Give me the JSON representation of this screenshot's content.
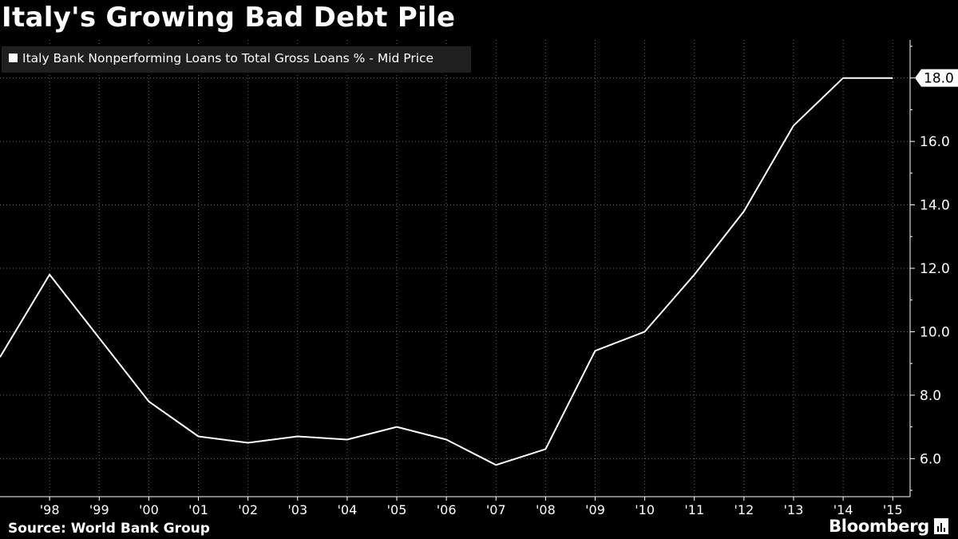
{
  "header": {
    "title": "Italy's Growing Bad Debt Pile"
  },
  "footer": {
    "source": "Source: World Bank Group",
    "brand": "Bloomberg"
  },
  "colors": {
    "background": "#000000",
    "line": "#ffffff",
    "grid": "#6a6a6a",
    "legend_bg": "#1f1f1f"
  },
  "chart_data": {
    "type": "line",
    "title": "Italy's Growing Bad Debt Pile",
    "xlabel": "",
    "ylabel": "",
    "series": [
      {
        "name": "Italy Bank Nonperforming Loans to Total Gross Loans % - Mid Price",
        "x": [
          1997,
          1998,
          1999,
          2000,
          2001,
          2002,
          2003,
          2004,
          2005,
          2006,
          2007,
          2008,
          2009,
          2010,
          2011,
          2012,
          2013,
          2014,
          2015
        ],
        "values": [
          9.2,
          11.8,
          9.8,
          7.8,
          6.7,
          6.5,
          6.7,
          6.6,
          7.0,
          6.6,
          5.8,
          6.3,
          9.4,
          10.0,
          11.8,
          13.8,
          16.5,
          18.0,
          18.0
        ]
      }
    ],
    "categories": [
      "'98",
      "'99",
      "'00",
      "'01",
      "'02",
      "'03",
      "'04",
      "'05",
      "'06",
      "'07",
      "'08",
      "'09",
      "'10",
      "'11",
      "'12",
      "'13",
      "'14",
      "'15"
    ],
    "yticks": [
      "6.0",
      "8.0",
      "10.0",
      "12.0",
      "14.0",
      "16.0",
      "18.0"
    ],
    "ytick_values": [
      6,
      8,
      10,
      12,
      14,
      16,
      18
    ],
    "last_value_label": "18.0",
    "ylim": [
      4.8,
      19.2
    ],
    "xlim": [
      1997,
      2015.35
    ],
    "grid": true,
    "legend_position": "top-left"
  }
}
